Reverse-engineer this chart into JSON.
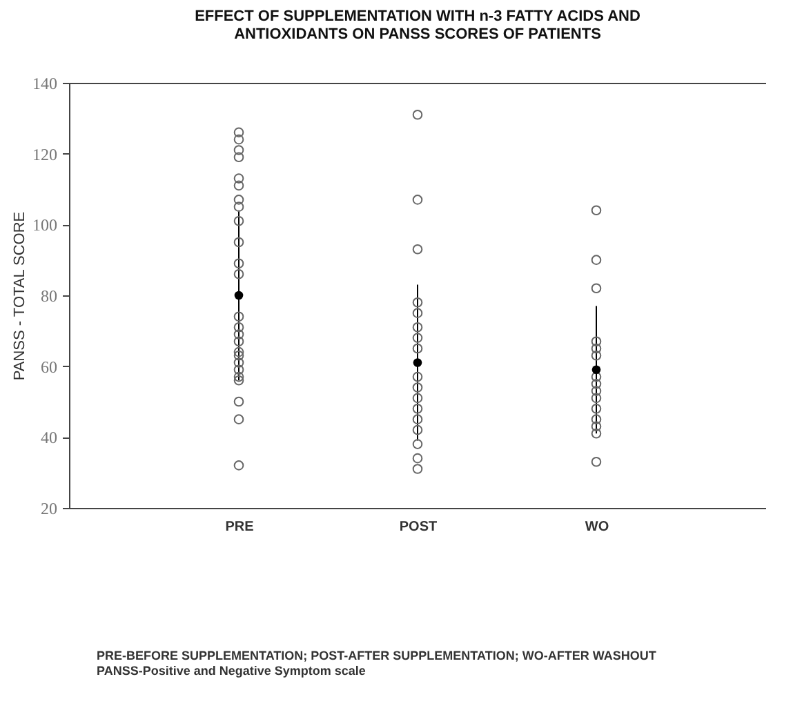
{
  "chart_data": {
    "type": "scatter",
    "title": "EFFECT OF SUPPLEMENTATION WITH n-3 FATTY ACIDS AND ANTIOXIDANTS ON PANSS SCORES OF PATIENTS",
    "ylabel": "PANSS - TOTAL SCORE",
    "categories": [
      "PRE",
      "POST",
      "WO"
    ],
    "series": [
      {
        "color": "#666666",
        "x": [
          "PRE",
          "PRE",
          "PRE",
          "PRE",
          "PRE",
          "PRE",
          "PRE",
          "PRE",
          "PRE",
          "PRE",
          "PRE",
          "PRE",
          "PRE",
          "PRE",
          "PRE",
          "PRE",
          "PRE",
          "PRE",
          "PRE",
          "PRE",
          "PRE",
          "PRE",
          "PRE",
          "PRE",
          "PRE",
          "POST",
          "POST",
          "POST",
          "POST",
          "POST",
          "POST",
          "POST",
          "POST",
          "POST",
          "POST",
          "POST",
          "POST",
          "POST",
          "POST",
          "POST",
          "POST",
          "POST",
          "WO",
          "WO",
          "WO",
          "WO",
          "WO",
          "WO",
          "WO",
          "WO",
          "WO",
          "WO",
          "WO",
          "WO",
          "WO",
          "WO",
          "WO"
        ],
        "values": [
          126,
          124,
          121,
          119,
          113,
          111,
          107,
          105,
          101,
          95,
          89,
          86,
          74,
          71,
          69,
          67,
          64,
          63,
          61,
          59,
          57,
          56,
          50,
          45,
          32,
          131,
          107,
          93,
          78,
          75,
          71,
          68,
          65,
          57,
          54,
          51,
          48,
          45,
          42,
          38,
          34,
          31,
          104,
          90,
          82,
          67,
          65,
          63,
          57,
          55,
          53,
          51,
          48,
          45,
          43,
          41,
          33
        ]
      },
      {
        "color": "#000000",
        "x": [
          "PRE",
          "POST",
          "WO"
        ],
        "values": [
          80,
          61,
          59
        ],
        "errors": [
          24,
          22,
          18
        ]
      }
    ],
    "ylim": [
      20,
      140
    ],
    "yticks": [
      20,
      40,
      60,
      80,
      100,
      120,
      140
    ],
    "marker": "circle",
    "grid": false,
    "annotations": [
      "PRE-BEFORE SUPPLEMENTATION; POST-AFTER SUPPLEMENTATION; WO-AFTER WASHOUT",
      "PANSS-Positive and Negative Symptom scale"
    ]
  }
}
